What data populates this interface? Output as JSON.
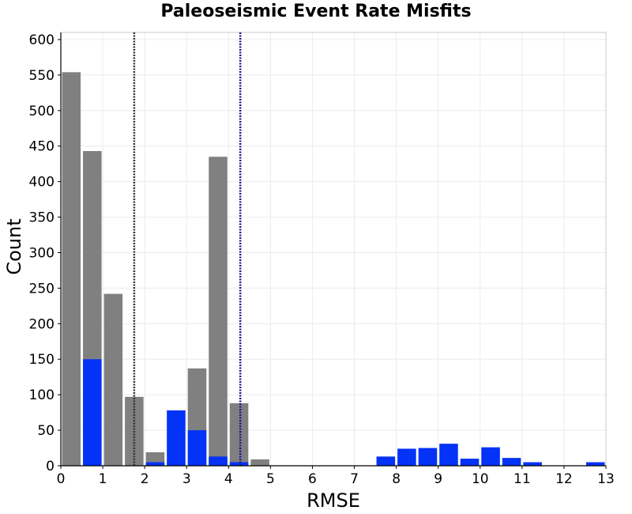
{
  "chart_data": {
    "type": "bar",
    "title": "Paleoseismic Event Rate Misfits",
    "xlabel": "RMSE",
    "ylabel": "Count",
    "xlim": [
      0,
      13
    ],
    "ylim": [
      0,
      610
    ],
    "xticks": [
      0,
      1,
      2,
      3,
      4,
      5,
      6,
      7,
      8,
      9,
      10,
      11,
      12,
      13
    ],
    "yticks": [
      0,
      50,
      100,
      150,
      200,
      250,
      300,
      350,
      400,
      450,
      500,
      550,
      600
    ],
    "bin_width": 0.5,
    "bin_starts": [
      0,
      0.5,
      1,
      1.5,
      2,
      2.5,
      3,
      3.5,
      4,
      4.5,
      5,
      5.5,
      6,
      6.5,
      7,
      7.5,
      8,
      8.5,
      9,
      9.5,
      10,
      10.5,
      11,
      11.5,
      12,
      12.5
    ],
    "grid": true,
    "series": [
      {
        "color": "#808080",
        "values": [
          554,
          443,
          242,
          97,
          19,
          5,
          137,
          435,
          88,
          9,
          0,
          0,
          0,
          0,
          0,
          0,
          0,
          0,
          0,
          0,
          0,
          0,
          0,
          0,
          0,
          0
        ]
      },
      {
        "color": "#0432f7",
        "values": [
          0,
          150,
          0,
          0,
          5,
          78,
          50,
          13,
          5,
          0,
          0,
          0,
          0,
          0,
          0,
          13,
          24,
          25,
          31,
          10,
          26,
          11,
          5,
          0,
          0,
          5
        ]
      }
    ],
    "reference_lines": [
      {
        "x": 1.75,
        "color": "#333333",
        "style": "dotted"
      },
      {
        "x": 4.28,
        "color": "#1a1a8c",
        "style": "dotted"
      }
    ]
  }
}
